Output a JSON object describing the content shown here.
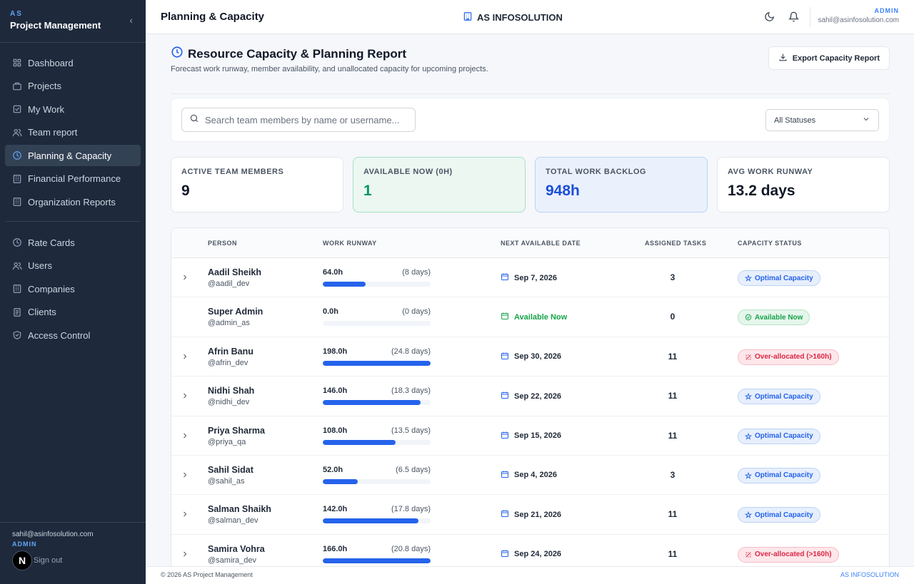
{
  "sidebar": {
    "brand_small": "AS",
    "brand_title": "Project Management",
    "collapse_glyph": "‹",
    "nav_main": [
      {
        "label": "Dashboard",
        "icon": "grid-icon",
        "active": false
      },
      {
        "label": "Projects",
        "icon": "briefcase-icon",
        "active": false
      },
      {
        "label": "My Work",
        "icon": "check-square-icon",
        "active": false
      },
      {
        "label": "Team report",
        "icon": "users-icon",
        "active": false
      },
      {
        "label": "Planning & Capacity",
        "icon": "clock-icon",
        "active": true
      },
      {
        "label": "Financial Performance",
        "icon": "building-icon",
        "active": false
      },
      {
        "label": "Organization Reports",
        "icon": "building-icon",
        "active": false
      }
    ],
    "nav_admin": [
      {
        "label": "Rate Cards",
        "icon": "clock-icon"
      },
      {
        "label": "Users",
        "icon": "users-icon"
      },
      {
        "label": "Companies",
        "icon": "building-icon"
      },
      {
        "label": "Clients",
        "icon": "document-icon"
      },
      {
        "label": "Access Control",
        "icon": "shield-icon"
      }
    ],
    "footer": {
      "email": "sahil@asinfosolution.com",
      "role": "ADMIN",
      "logo_letter": "N",
      "signout": "Sign out"
    }
  },
  "header": {
    "title": "Planning & Capacity",
    "org": "AS INFOSOLUTION",
    "role": "ADMIN",
    "email": "sahil@asinfosolution.com"
  },
  "page": {
    "title": "Resource Capacity & Planning Report",
    "subtitle": "Forecast work runway, member availability, and unallocated capacity for upcoming projects.",
    "export_label": "Export Capacity Report",
    "search_placeholder": "Search team members by name or username...",
    "status_filter": "All Statuses"
  },
  "stats": [
    {
      "label": "ACTIVE TEAM MEMBERS",
      "value": "9",
      "style": "plain"
    },
    {
      "label": "AVAILABLE NOW (0H)",
      "value": "1",
      "style": "green"
    },
    {
      "label": "TOTAL WORK BACKLOG",
      "value": "948h",
      "style": "blue"
    },
    {
      "label": "AVG WORK RUNWAY",
      "value": "13.2 days",
      "style": "plain"
    }
  ],
  "table": {
    "headers": {
      "person": "PERSON",
      "runway": "WORK RUNWAY",
      "next_date": "NEXT AVAILABLE DATE",
      "tasks": "ASSIGNED TASKS",
      "status": "CAPACITY STATUS"
    },
    "rows": [
      {
        "name": "Aadil Sheikh",
        "username": "@aadil_dev",
        "hours": "64.0h",
        "days": "(8 days)",
        "runway_fraction": 0.4,
        "date": "Sep 7, 2026",
        "available": false,
        "tasks": "3",
        "status": "Optimal Capacity",
        "status_kind": "optimal",
        "expandable": true
      },
      {
        "name": "Super Admin",
        "username": "@admin_as",
        "hours": "0.0h",
        "days": "(0 days)",
        "runway_fraction": 0.0,
        "date": "Available Now",
        "available": true,
        "tasks": "0",
        "status": "Available Now",
        "status_kind": "available",
        "expandable": false
      },
      {
        "name": "Afrin Banu",
        "username": "@afrin_dev",
        "hours": "198.0h",
        "days": "(24.8 days)",
        "runway_fraction": 1.0,
        "date": "Sep 30, 2026",
        "available": false,
        "tasks": "11",
        "status": "Over-allocated (>160h)",
        "status_kind": "over",
        "expandable": true
      },
      {
        "name": "Nidhi Shah",
        "username": "@nidhi_dev",
        "hours": "146.0h",
        "days": "(18.3 days)",
        "runway_fraction": 0.91,
        "date": "Sep 22, 2026",
        "available": false,
        "tasks": "11",
        "status": "Optimal Capacity",
        "status_kind": "optimal",
        "expandable": true
      },
      {
        "name": "Priya Sharma",
        "username": "@priya_qa",
        "hours": "108.0h",
        "days": "(13.5 days)",
        "runway_fraction": 0.675,
        "date": "Sep 15, 2026",
        "available": false,
        "tasks": "11",
        "status": "Optimal Capacity",
        "status_kind": "optimal",
        "expandable": true
      },
      {
        "name": "Sahil Sidat",
        "username": "@sahil_as",
        "hours": "52.0h",
        "days": "(6.5 days)",
        "runway_fraction": 0.325,
        "date": "Sep 4, 2026",
        "available": false,
        "tasks": "3",
        "status": "Optimal Capacity",
        "status_kind": "optimal",
        "expandable": true
      },
      {
        "name": "Salman Shaikh",
        "username": "@salman_dev",
        "hours": "142.0h",
        "days": "(17.8 days)",
        "runway_fraction": 0.8875,
        "date": "Sep 21, 2026",
        "available": false,
        "tasks": "11",
        "status": "Optimal Capacity",
        "status_kind": "optimal",
        "expandable": true
      },
      {
        "name": "Samira Vohra",
        "username": "@samira_dev",
        "hours": "166.0h",
        "days": "(20.8 days)",
        "runway_fraction": 1.0,
        "date": "Sep 24, 2026",
        "available": false,
        "tasks": "11",
        "status": "Over-allocated (>160h)",
        "status_kind": "over",
        "expandable": true
      }
    ]
  },
  "footer": {
    "copyright": "© 2026 AS Project Management",
    "org": "AS INFOSOLUTION"
  },
  "colors": {
    "sidebar_bg": "#1e293b",
    "accent": "#2563eb",
    "green": "#059669",
    "danger": "#dc2645"
  }
}
